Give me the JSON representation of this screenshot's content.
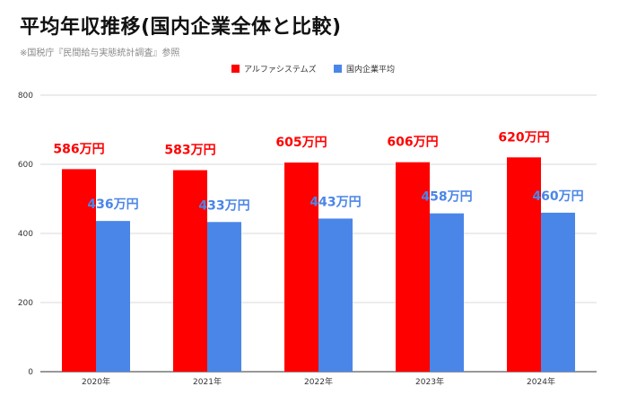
{
  "title": "平均年収推移(国内企業全体と比較)",
  "subtitle": "※国税庁『民間給与実態統計調査』参照",
  "colors": {
    "series1": "#ff0000",
    "series2": "#4a86e8",
    "grid": "#d9d9d9",
    "axis": "#333333"
  },
  "chart_data": {
    "type": "bar",
    "categories": [
      "2020年",
      "2021年",
      "2022年",
      "2023年",
      "2024年"
    ],
    "series": [
      {
        "name": "アルファシステムズ",
        "values": [
          586,
          583,
          605,
          606,
          620
        ],
        "labels": [
          "586万円",
          "583万円",
          "605万円",
          "606万円",
          "620万円"
        ]
      },
      {
        "name": "国内企業平均",
        "values": [
          436,
          433,
          443,
          458,
          460
        ],
        "labels": [
          "436万円",
          "433万円",
          "443万円",
          "458万円",
          "460万円"
        ]
      }
    ],
    "ylim": [
      0,
      800
    ],
    "yticks": [
      0,
      200,
      400,
      600,
      800
    ],
    "grid": true,
    "legend_position": "top"
  }
}
